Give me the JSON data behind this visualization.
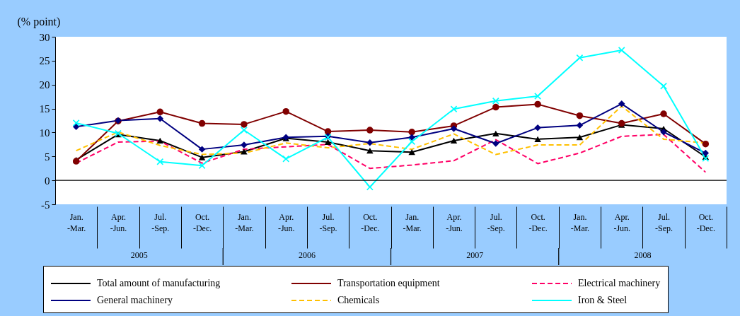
{
  "chart_data": {
    "type": "line",
    "ylabel": "(% point)",
    "categories": [
      "Jan. -Mar.",
      "Apr. -Jun.",
      "Jul. -Sep.",
      "Oct. -Dec.",
      "Jan. -Mar.",
      "Apr. -Jun.",
      "Jul. -Sep.",
      "Oct. -Dec.",
      "Jan. -Mar.",
      "Apr. -Jun.",
      "Jul. -Sep.",
      "Oct. -Dec.",
      "Jan. -Mar.",
      "Apr. -Jun.",
      "Jul. -Sep.",
      "Oct. -Dec."
    ],
    "annotations": [
      "2005",
      "2006",
      "2007",
      "2008"
    ],
    "series": [
      {
        "name": "Total amount of manufacturing",
        "color": "#000000",
        "marker": "triangle",
        "line_style": "solid",
        "values": [
          4.3,
          9.6,
          8.3,
          4.8,
          6.0,
          8.8,
          8.0,
          6.2,
          5.9,
          8.3,
          9.8,
          8.6,
          9.0,
          11.6,
          10.8,
          4.9
        ]
      },
      {
        "name": "Transportation equipment",
        "color": "#800000",
        "marker": "circle",
        "line_style": "solid",
        "values": [
          4.0,
          12.4,
          14.3,
          11.9,
          11.7,
          14.4,
          10.2,
          10.5,
          10.1,
          11.4,
          15.3,
          15.9,
          13.5,
          11.9,
          13.9,
          7.6
        ]
      },
      {
        "name": "Electrical machinery",
        "color": "#ff0066",
        "marker": "none",
        "line_style": "dashed",
        "values": [
          3.6,
          8.0,
          8.2,
          3.6,
          6.5,
          7.0,
          7.5,
          2.5,
          3.2,
          4.1,
          8.5,
          3.5,
          5.7,
          9.2,
          9.6,
          1.7
        ]
      },
      {
        "name": "General machinery",
        "color": "#000080",
        "marker": "diamond",
        "line_style": "solid",
        "values": [
          11.2,
          12.5,
          12.9,
          6.5,
          7.4,
          9.0,
          9.2,
          7.9,
          9.0,
          10.8,
          7.7,
          11.0,
          11.5,
          16.0,
          10.1,
          5.7
        ]
      },
      {
        "name": "Chemicals",
        "color": "#ffc000",
        "marker": "none",
        "line_style": "dashed",
        "values": [
          6.2,
          10.1,
          7.3,
          5.4,
          5.7,
          7.8,
          6.8,
          7.7,
          6.5,
          9.7,
          5.4,
          7.4,
          7.4,
          15.5,
          8.6,
          7.8
        ]
      },
      {
        "name": "Iron & Steel",
        "color": "#00ffff",
        "marker": "cross",
        "line_style": "solid",
        "values": [
          12.0,
          9.8,
          3.9,
          3.1,
          10.5,
          4.5,
          9.0,
          -1.4,
          8.1,
          14.9,
          16.6,
          17.6,
          25.6,
          27.2,
          19.7,
          4.6
        ]
      }
    ],
    "ylim": [
      -5,
      30
    ],
    "yticks": [
      -5,
      0,
      5,
      10,
      15,
      20,
      25,
      30
    ],
    "grid": false,
    "legend": "bottom",
    "ref_lines": [
      {
        "axis": "y",
        "value": 0,
        "color": "#000000"
      }
    ]
  }
}
